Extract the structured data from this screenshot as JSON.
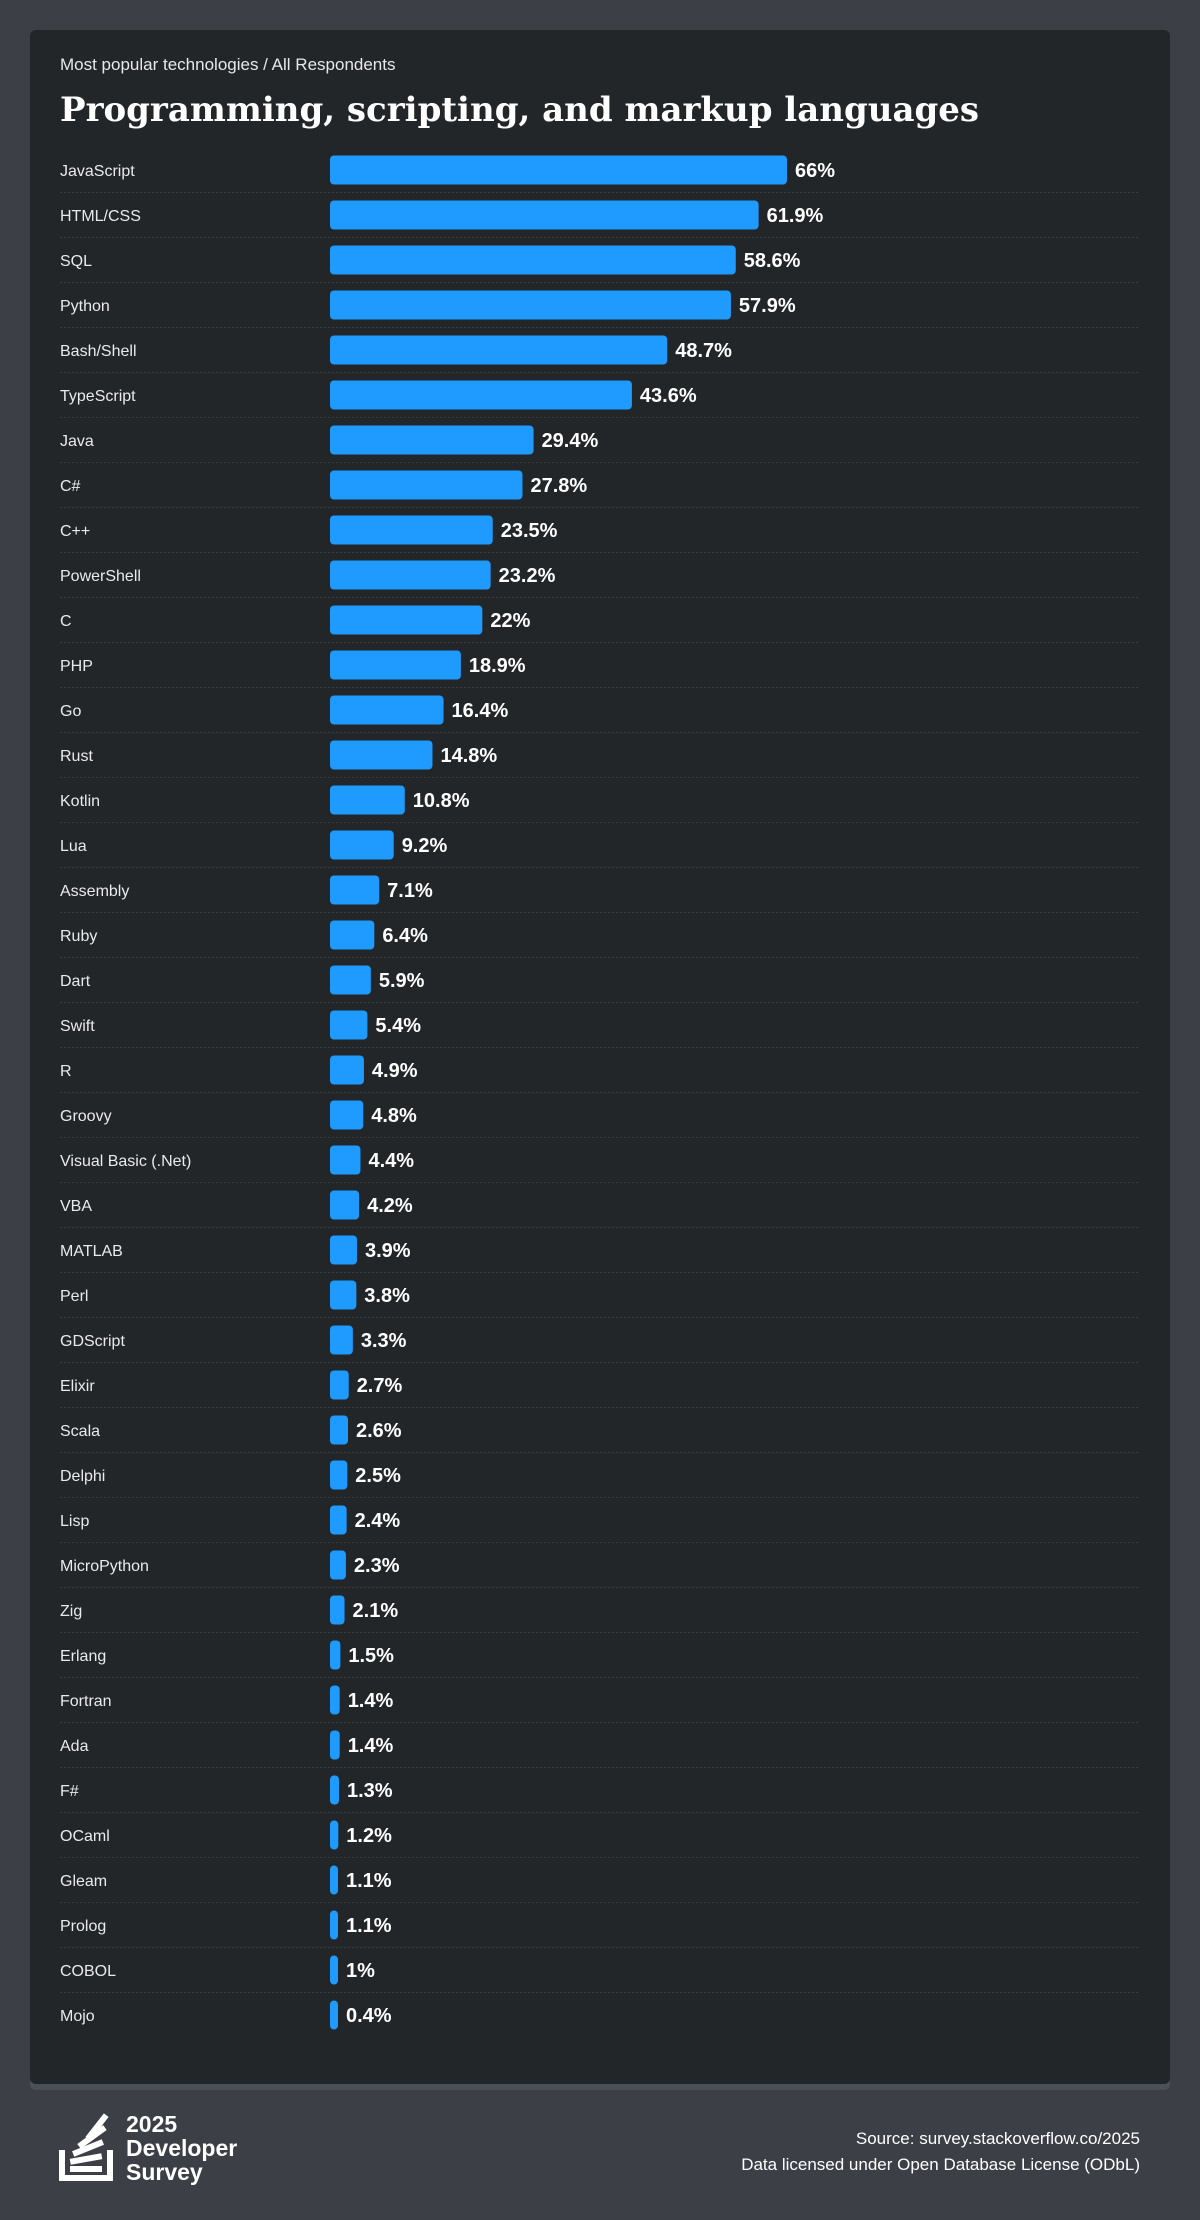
{
  "header": {
    "subtitle": "Most popular technologies / All Respondents",
    "title": "Programming, scripting, and markup languages"
  },
  "colors": {
    "bar": "#1f9bff",
    "card": "#232629",
    "page": "#3c3f46",
    "divider": "#3a3e44"
  },
  "chart_data": {
    "type": "bar",
    "orientation": "horizontal",
    "title": "Programming, scripting, and markup languages",
    "subtitle": "Most popular technologies / All Respondents",
    "xlim": [
      0,
      66
    ],
    "grid": false,
    "categories": [
      "JavaScript",
      "HTML/CSS",
      "SQL",
      "Python",
      "Bash/Shell",
      "TypeScript",
      "Java",
      "C#",
      "C++",
      "PowerShell",
      "C",
      "PHP",
      "Go",
      "Rust",
      "Kotlin",
      "Lua",
      "Assembly",
      "Ruby",
      "Dart",
      "Swift",
      "R",
      "Groovy",
      "Visual Basic (.Net)",
      "VBA",
      "MATLAB",
      "Perl",
      "GDScript",
      "Elixir",
      "Scala",
      "Delphi",
      "Lisp",
      "MicroPython",
      "Zig",
      "Erlang",
      "Fortran",
      "Ada",
      "F#",
      "OCaml",
      "Gleam",
      "Prolog",
      "COBOL",
      "Mojo"
    ],
    "values": [
      66,
      61.9,
      58.6,
      57.9,
      48.7,
      43.6,
      29.4,
      27.8,
      23.5,
      23.2,
      22,
      18.9,
      16.4,
      14.8,
      10.8,
      9.2,
      7.1,
      6.4,
      5.9,
      5.4,
      4.9,
      4.8,
      4.4,
      4.2,
      3.9,
      3.8,
      3.3,
      2.7,
      2.6,
      2.5,
      2.4,
      2.3,
      2.1,
      1.5,
      1.4,
      1.4,
      1.3,
      1.2,
      1.1,
      1.1,
      1,
      0.4
    ],
    "labels": [
      "66%",
      "61.9%",
      "58.6%",
      "57.9%",
      "48.7%",
      "43.6%",
      "29.4%",
      "27.8%",
      "23.5%",
      "23.2%",
      "22%",
      "18.9%",
      "16.4%",
      "14.8%",
      "10.8%",
      "9.2%",
      "7.1%",
      "6.4%",
      "5.9%",
      "5.4%",
      "4.9%",
      "4.8%",
      "4.4%",
      "4.2%",
      "3.9%",
      "3.8%",
      "3.3%",
      "2.7%",
      "2.6%",
      "2.5%",
      "2.4%",
      "2.3%",
      "2.1%",
      "1.5%",
      "1.4%",
      "1.4%",
      "1.3%",
      "1.2%",
      "1.1%",
      "1.1%",
      "1%",
      "0.4%"
    ]
  },
  "footer": {
    "logo_text": "2025 Developer Survey",
    "logo_icon": "stackoverflow-logo-icon",
    "source": "Source: survey.stackoverflow.co/2025",
    "license": "Data licensed under Open Database License (ODbL)"
  }
}
